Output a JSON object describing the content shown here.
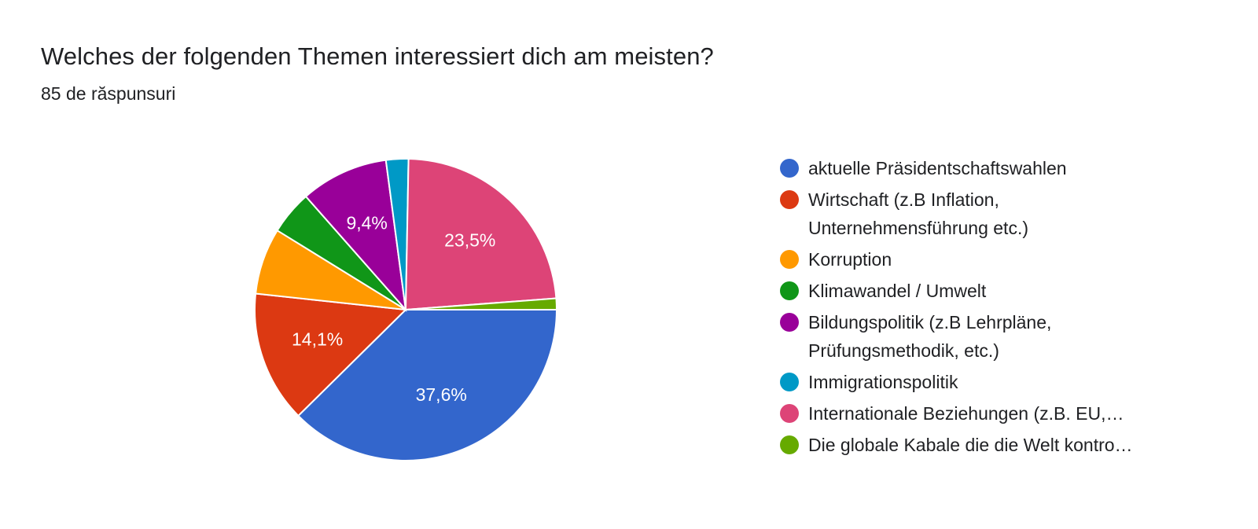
{
  "chart_data": {
    "type": "pie",
    "title": "Welches der folgenden Themen interessiert dich am meisten?",
    "subtitle": "85 de răspunsuri",
    "legend_position": "right",
    "slices": [
      {
        "label": "aktuelle Präsidentschaftswahlen",
        "value": 37.6,
        "display": "37,6%",
        "color": "#3366cc"
      },
      {
        "label": "Wirtschaft (z.B Inflation, Unternehmensführung etc.)",
        "value": 14.1,
        "display": "14,1%",
        "color": "#dc3912"
      },
      {
        "label": "Korruption",
        "value": 7.1,
        "display": "",
        "color": "#ff9900"
      },
      {
        "label": "Klimawandel / Umwelt",
        "value": 4.7,
        "display": "",
        "color": "#109618"
      },
      {
        "label": "Bildungspolitik (z.B Lehrpläne, Prüfungsmethodik, etc.)",
        "value": 9.4,
        "display": "9,4%",
        "color": "#990099"
      },
      {
        "label": "Immigrationspolitik",
        "value": 2.4,
        "display": "",
        "color": "#0099c6"
      },
      {
        "label": "Internationale Beziehungen (z.B. EU,…",
        "value": 23.5,
        "display": "23,5%",
        "color": "#dd4477"
      },
      {
        "label": "Die globale Kabale die die Welt kontro…",
        "value": 1.2,
        "display": "",
        "color": "#66aa00"
      }
    ]
  }
}
